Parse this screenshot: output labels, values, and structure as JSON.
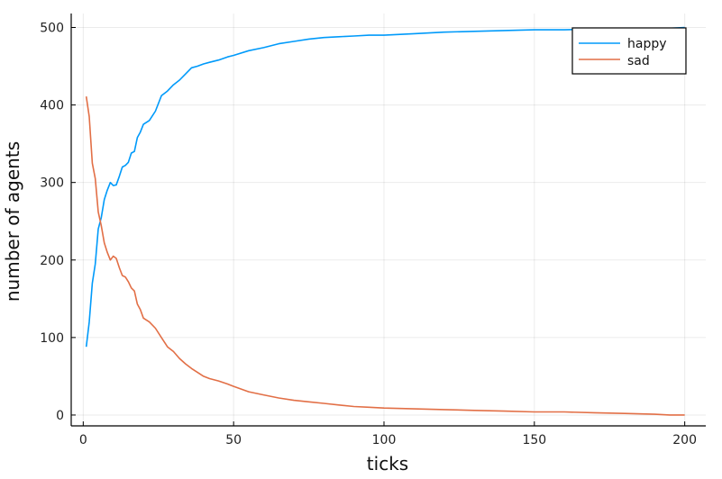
{
  "chart_data": {
    "type": "line",
    "title": "",
    "xlabel": "ticks",
    "ylabel": "number of agents",
    "xlim": [
      -4,
      207
    ],
    "ylim": [
      -14,
      518
    ],
    "xticks": [
      0,
      50,
      100,
      150,
      200
    ],
    "yticks": [
      0,
      100,
      200,
      300,
      400,
      500
    ],
    "grid": true,
    "legend": "top-right",
    "series": [
      {
        "name": "happy",
        "color": "#009AFA",
        "x": [
          1,
          2,
          3,
          4,
          5,
          6,
          7,
          8,
          9,
          10,
          11,
          12,
          13,
          14,
          15,
          16,
          17,
          18,
          19,
          20,
          22,
          24,
          26,
          28,
          30,
          32,
          34,
          36,
          38,
          40,
          42,
          45,
          48,
          50,
          55,
          60,
          65,
          70,
          75,
          80,
          85,
          90,
          95,
          100,
          110,
          120,
          130,
          140,
          150,
          160,
          170,
          180,
          190,
          195,
          200
        ],
        "y": [
          88,
          120,
          170,
          195,
          240,
          255,
          278,
          290,
          300,
          296,
          297,
          308,
          320,
          322,
          326,
          338,
          340,
          358,
          365,
          375,
          380,
          392,
          412,
          418,
          426,
          432,
          440,
          448,
          450,
          453,
          455,
          458,
          462,
          464,
          470,
          474,
          479,
          482,
          485,
          487,
          488,
          489,
          490,
          490,
          492,
          494,
          495,
          496,
          497,
          497,
          498,
          498,
          499,
          499,
          500
        ]
      },
      {
        "name": "sad",
        "color": "#E26F46",
        "x": [
          1,
          2,
          3,
          4,
          5,
          6,
          7,
          8,
          9,
          10,
          11,
          12,
          13,
          14,
          15,
          16,
          17,
          18,
          19,
          20,
          22,
          24,
          26,
          28,
          30,
          32,
          34,
          36,
          38,
          40,
          42,
          45,
          48,
          50,
          55,
          60,
          65,
          70,
          75,
          80,
          85,
          90,
          95,
          100,
          110,
          120,
          130,
          140,
          150,
          160,
          170,
          180,
          190,
          195,
          200
        ],
        "y": [
          411,
          385,
          325,
          305,
          262,
          244,
          222,
          210,
          200,
          205,
          202,
          190,
          180,
          178,
          172,
          164,
          160,
          143,
          136,
          125,
          120,
          112,
          100,
          88,
          82,
          73,
          66,
          60,
          55,
          50,
          47,
          44,
          40,
          37,
          30,
          26,
          22,
          19,
          17,
          15,
          13,
          11,
          10,
          9,
          8,
          7,
          6,
          5,
          4,
          4,
          3,
          2,
          1,
          0,
          0
        ]
      }
    ]
  }
}
